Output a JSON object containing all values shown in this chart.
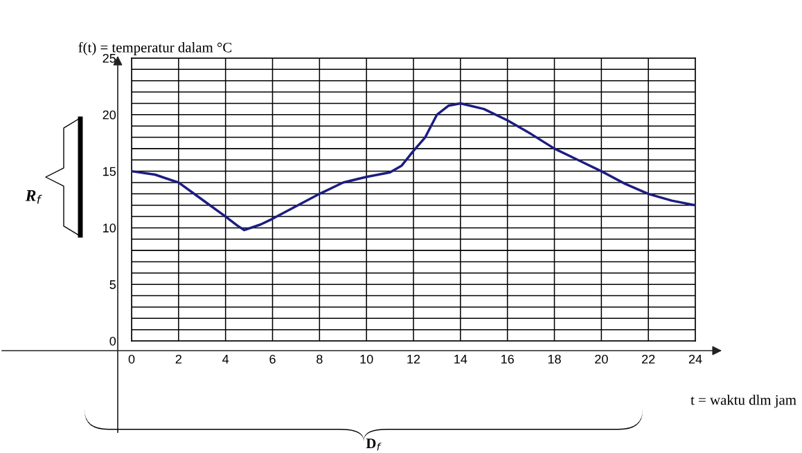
{
  "chart_data": {
    "type": "line",
    "xlabel": "t = waktu dlm jam",
    "ylabel": "f(t) = temperatur dalam °C",
    "x": [
      0,
      1,
      2,
      3,
      4,
      4.5,
      4.8,
      5.5,
      6,
      7,
      8,
      9,
      10,
      11,
      11.5,
      12,
      12.5,
      13,
      13.5,
      14,
      15,
      16,
      17,
      18,
      19,
      20,
      21,
      22,
      23,
      24
    ],
    "series": [
      {
        "color": "#1c1c82",
        "values": [
          15,
          14.7,
          14,
          12.5,
          11,
          10.2,
          9.8,
          10.3,
          10.8,
          11.9,
          13,
          14,
          14.5,
          14.9,
          15.5,
          16.8,
          18,
          20,
          20.8,
          21,
          20.5,
          19.5,
          18.3,
          17,
          16,
          15,
          13.9,
          13,
          12.4,
          12
        ]
      }
    ],
    "xlim": [
      0,
      24
    ],
    "ylim": [
      0,
      25
    ],
    "xticks": [
      0,
      2,
      4,
      6,
      8,
      10,
      12,
      14,
      16,
      18,
      20,
      22,
      24
    ],
    "yticks": [
      0,
      {
        "value": 1,
        "label": null
      },
      {
        "value": 2,
        "label": null
      },
      {
        "value": 3,
        "label": null
      },
      {
        "value": 4,
        "label": null
      },
      5,
      {
        "value": 6,
        "label": null
      },
      {
        "value": 7,
        "label": null
      },
      {
        "value": 8,
        "label": null
      },
      {
        "value": 9,
        "label": null
      },
      10,
      {
        "value": 11,
        "label": null
      },
      {
        "value": 12,
        "label": null
      },
      {
        "value": 13,
        "label": null
      },
      {
        "value": 14,
        "label": null
      },
      15,
      {
        "value": 16,
        "label": null
      },
      {
        "value": 17,
        "label": null
      },
      {
        "value": 18,
        "label": null
      },
      {
        "value": 19,
        "label": null
      },
      20,
      {
        "value": 21,
        "label": null
      },
      {
        "value": 22,
        "label": null
      },
      {
        "value": 23,
        "label": null
      },
      {
        "value": 24,
        "label": null
      },
      25
    ],
    "grid": true,
    "line_style": "solid",
    "marker": "none",
    "annotations": [
      "R$_{f}$",
      "D$_{f}$"
    ]
  }
}
